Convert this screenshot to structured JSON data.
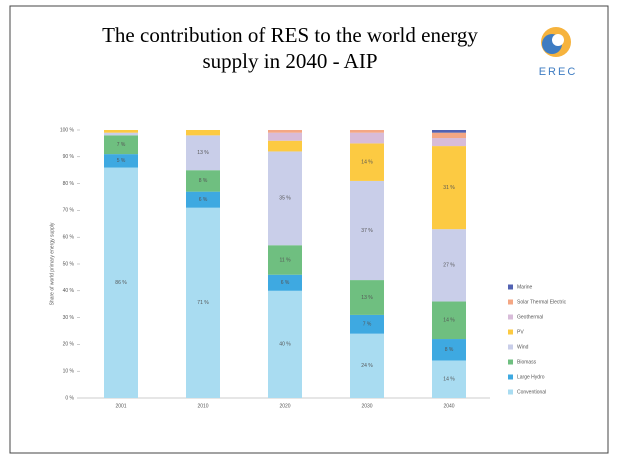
{
  "slide": {
    "title": "The contribution of RES to the world energy supply in 2040 - AIP",
    "logo_text": "EREC"
  },
  "chart_data": {
    "type": "stacked_bar",
    "y_label": "Share of world primary energy supply",
    "categories": [
      "2001",
      "2010",
      "2020",
      "2030",
      "2040"
    ],
    "ylim": [
      0,
      100
    ],
    "yticks": [
      {
        "value": 0,
        "label": "0 %"
      },
      {
        "value": 10,
        "label": "10 %"
      },
      {
        "value": 20,
        "label": "20 %"
      },
      {
        "value": 30,
        "label": "30 %"
      },
      {
        "value": 40,
        "label": "40 %"
      },
      {
        "value": 50,
        "label": "50 %"
      },
      {
        "value": 60,
        "label": "60 %"
      },
      {
        "value": 70,
        "label": "70 %"
      },
      {
        "value": 80,
        "label": "80 %"
      },
      {
        "value": 90,
        "label": "90 %"
      },
      {
        "value": 100,
        "label": "100 %"
      }
    ],
    "series": [
      {
        "name": "Conventional",
        "color": "#a9dcf1",
        "values": [
          86,
          71,
          40,
          24,
          14
        ],
        "value_labels": [
          "86 %",
          "71 %",
          "40 %",
          "24 %",
          "14 %"
        ]
      },
      {
        "name": "Large Hydro",
        "color": "#3ea9e1",
        "values": [
          5,
          6,
          6,
          7,
          8
        ],
        "value_labels": [
          "5 %",
          "6 %",
          "6 %",
          "7 %",
          "8 %"
        ]
      },
      {
        "name": "Biomass",
        "color": "#6fbf80",
        "values": [
          7,
          8,
          11,
          13,
          14
        ],
        "value_labels": [
          "7 %",
          "8 %",
          "11 %",
          "13 %",
          "14 %"
        ]
      },
      {
        "name": "Wind",
        "color": "#c9cee9",
        "values": [
          1,
          13,
          35,
          37,
          27
        ],
        "value_labels": [
          null,
          "13 %",
          "35 %",
          "37 %",
          "27 %"
        ]
      },
      {
        "name": "PV",
        "color": "#fcca42",
        "values": [
          1,
          2,
          4,
          14,
          31
        ],
        "value_labels": [
          null,
          null,
          null,
          "14 %",
          "31 %"
        ]
      },
      {
        "name": "Geothermal",
        "color": "#d8bcd9",
        "values": [
          0,
          0,
          3,
          4,
          3
        ],
        "value_labels": [
          null,
          null,
          null,
          null,
          null
        ]
      },
      {
        "name": "Solar Thermal Electric",
        "color": "#f4a784",
        "values": [
          0,
          0,
          1,
          1,
          2
        ],
        "value_labels": [
          null,
          null,
          null,
          null,
          null
        ]
      },
      {
        "name": "Marine",
        "color": "#5262b2",
        "values": [
          0,
          0,
          0,
          0,
          1
        ],
        "value_labels": [
          null,
          null,
          null,
          null,
          null
        ]
      }
    ]
  }
}
